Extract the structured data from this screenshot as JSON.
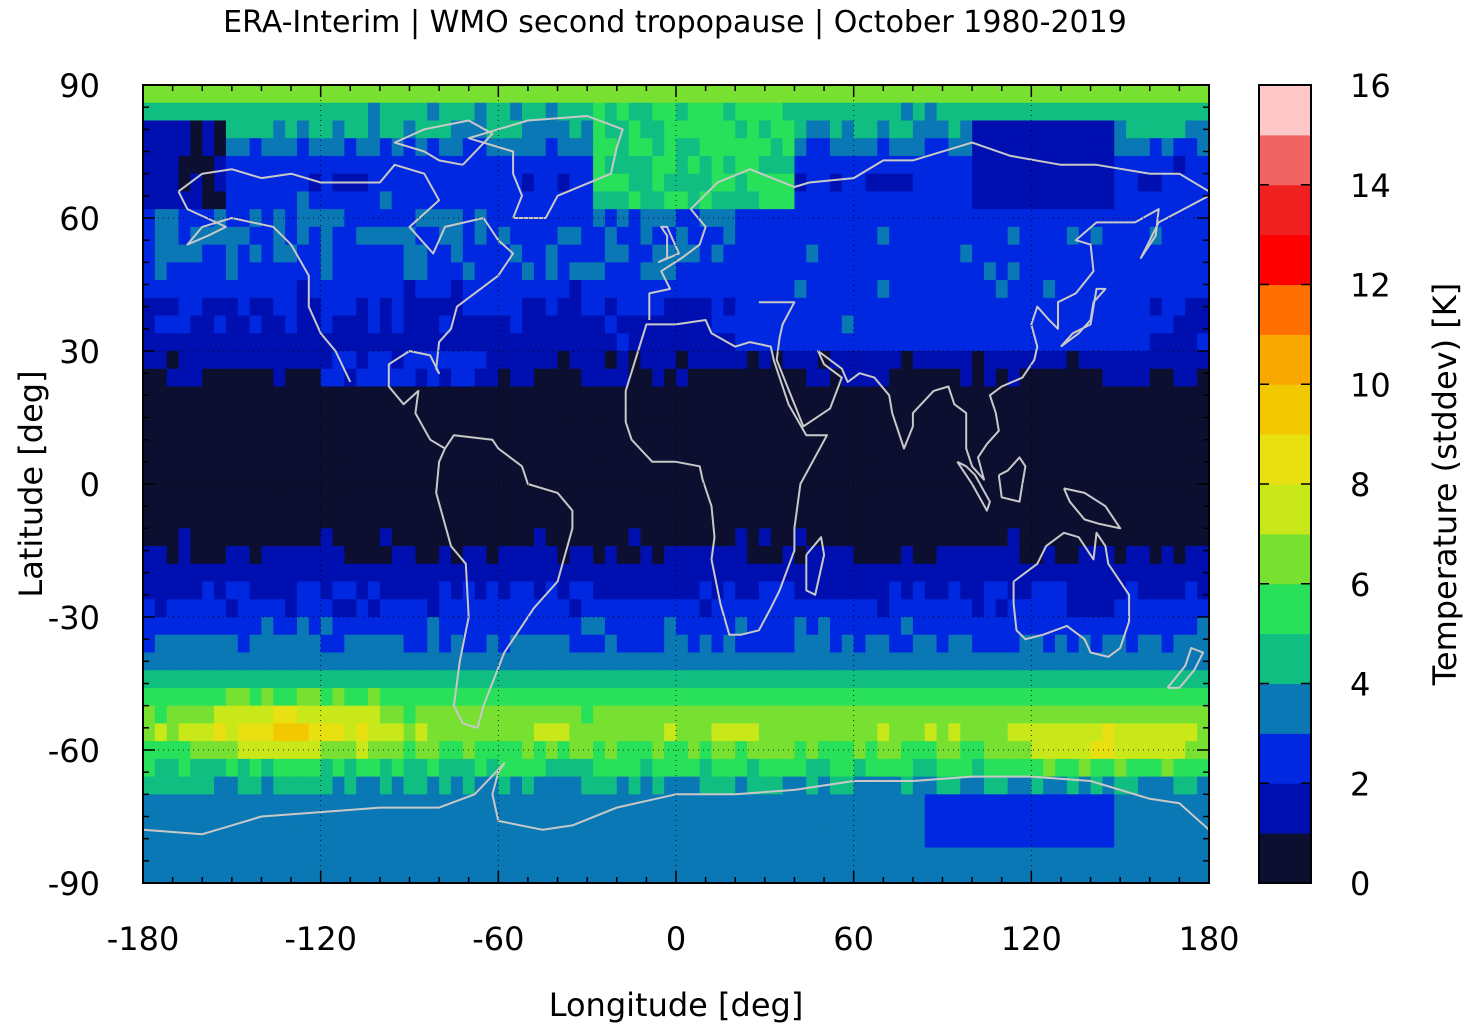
{
  "chart_data": {
    "type": "heatmap",
    "title": "ERA-Interim | WMO second tropopause | October 1980-2019",
    "xlabel": "Longitude [deg]",
    "ylabel": "Latitude [deg]",
    "colorbar_label": "Temperature (stddev) [K]",
    "xlim": [
      -180,
      180
    ],
    "ylim": [
      -90,
      90
    ],
    "x_ticks": [
      "-180",
      "-120",
      "-60",
      "0",
      "60",
      "120",
      "180"
    ],
    "x_tick_values": [
      -180,
      -120,
      -60,
      0,
      60,
      120,
      180
    ],
    "y_ticks": [
      "90",
      "60",
      "30",
      "0",
      "-30",
      "-60",
      "-90"
    ],
    "y_tick_values": [
      90,
      60,
      30,
      0,
      -30,
      -60,
      -90
    ],
    "grid": true,
    "coastlines": true,
    "colorbar": {
      "range": [
        0,
        16
      ],
      "step": 1,
      "tick_labels": [
        "0",
        "2",
        "4",
        "6",
        "8",
        "10",
        "12",
        "14",
        "16"
      ],
      "tick_values": [
        0,
        2,
        4,
        6,
        8,
        10,
        12,
        14,
        16
      ],
      "colors": [
        "#0d0f30",
        "#0010b0",
        "#0028e0",
        "#0a78b4",
        "#10be82",
        "#28e05a",
        "#78e030",
        "#c8e81a",
        "#e8e010",
        "#f2c800",
        "#f8a800",
        "#ff7000",
        "#ff0000",
        "#f02020",
        "#f06464",
        "#ffc8c8"
      ]
    },
    "zonal_stddev_profile": {
      "latitude": [
        90,
        80,
        70,
        60,
        50,
        40,
        30,
        20,
        10,
        0,
        -10,
        -20,
        -30,
        -40,
        -50,
        -55,
        -60,
        -70,
        -80,
        -90
      ],
      "value": [
        5,
        4,
        2,
        3,
        3,
        2,
        1.5,
        0.5,
        0.5,
        0.5,
        0.5,
        1.5,
        2.5,
        3.5,
        6,
        7,
        6,
        3.5,
        3.5,
        3.5
      ]
    }
  }
}
